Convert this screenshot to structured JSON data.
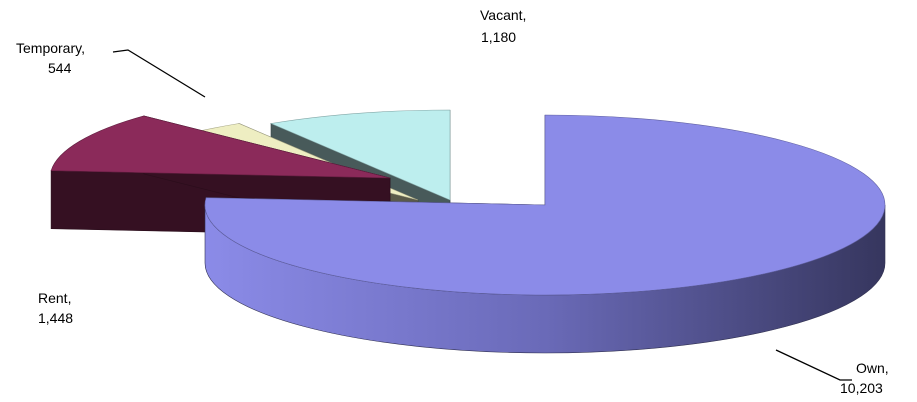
{
  "chart_data": {
    "type": "pie3d",
    "categories": [
      "Own,",
      "Rent,",
      "Temporary,",
      "Vacant,"
    ],
    "values": [
      10203,
      1448,
      544,
      1180
    ],
    "value_labels": [
      "10,203",
      "1,448",
      "544",
      "1,180"
    ],
    "colors": [
      "#8b8be8",
      "#8b2a5a",
      "#eeeec2",
      "#bdeeee"
    ]
  }
}
